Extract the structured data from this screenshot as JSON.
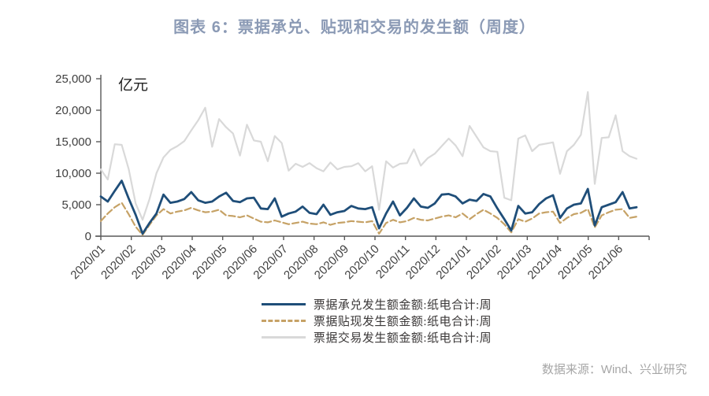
{
  "title": "图表 6：票据承兑、贴现和交易的发生额（周度）",
  "unit_label": "亿元",
  "source": "数据来源：Wind、兴业研究",
  "colors": {
    "title": "#8B9AB5",
    "axis": "#595959",
    "tick_text": "#404040",
    "source_text": "#A6A6A6",
    "series_accept": "#1F4E79",
    "series_discount": "#C6A266",
    "series_trade": "#D9D9D9"
  },
  "chart_data": {
    "type": "line",
    "title": "图表 6：票据承兑、贴现和交易的发生额（周度）",
    "ylabel": "亿元",
    "ylim": [
      0,
      25000
    ],
    "y_ticks": [
      "25,000",
      "20,000",
      "15,000",
      "10,000",
      "5,000",
      "0"
    ],
    "x_labels": [
      "2020/01",
      "2020/02",
      "2020/03",
      "2020/04",
      "2020/05",
      "2020/06",
      "2020/07",
      "2020/08",
      "2020/09",
      "2020/10",
      "2020/11",
      "2020/12",
      "2021/01",
      "2021/02",
      "2021/03",
      "2021/04",
      "2021/05",
      "2021/06"
    ],
    "frequency": "weekly",
    "grid": false,
    "legend_position": "bottom",
    "series": [
      {
        "name": "票据承兑发生额金额:纸电合计:周",
        "color": "#1F4E79",
        "dash": "solid",
        "values": [
          6300,
          5500,
          7200,
          8800,
          6000,
          3400,
          400,
          2100,
          3600,
          6600,
          5300,
          5500,
          5900,
          7000,
          5700,
          5300,
          5500,
          6300,
          6900,
          5600,
          5400,
          6000,
          6100,
          4400,
          4300,
          6000,
          3100,
          3600,
          3900,
          4700,
          3700,
          3500,
          5000,
          3400,
          3800,
          4000,
          4800,
          4400,
          4300,
          4600,
          1250,
          3600,
          5500,
          3300,
          4500,
          6000,
          4700,
          4500,
          5200,
          6600,
          6700,
          6300,
          5200,
          5800,
          5600,
          6700,
          6300,
          4400,
          2700,
          900,
          4800,
          3600,
          3800,
          5100,
          6000,
          6500,
          2900,
          4400,
          5000,
          5200,
          7500,
          1700,
          4600,
          5000,
          5400,
          7000,
          4400,
          4600
        ]
      },
      {
        "name": "票据贴现发生额金额:纸电合计:周",
        "color": "#C6A266",
        "dash": "dashed",
        "values": [
          2400,
          3600,
          4600,
          5300,
          3500,
          1500,
          200,
          1800,
          3300,
          4300,
          3600,
          3900,
          4100,
          4500,
          4100,
          3800,
          3900,
          4200,
          3300,
          3200,
          3000,
          3300,
          2800,
          2300,
          2200,
          2500,
          2200,
          1900,
          2100,
          2300,
          2000,
          1900,
          2200,
          1800,
          2100,
          2200,
          2400,
          2300,
          2200,
          2400,
          400,
          2100,
          2600,
          2200,
          2400,
          2900,
          2600,
          2500,
          2800,
          3100,
          3300,
          3000,
          3600,
          2700,
          3500,
          4200,
          3600,
          2900,
          1900,
          600,
          2700,
          2300,
          2800,
          3600,
          3800,
          3900,
          2100,
          2900,
          3500,
          3700,
          4300,
          1400,
          3300,
          3800,
          4200,
          4300,
          2900,
          3100
        ]
      },
      {
        "name": "票据交易发生额金额:纸电合计:周",
        "color": "#D9D9D9",
        "dash": "solid",
        "values": [
          10600,
          9000,
          14600,
          14500,
          10700,
          5200,
          2600,
          5900,
          10000,
          12500,
          13700,
          14300,
          15100,
          16800,
          18400,
          20400,
          14200,
          18600,
          17300,
          16300,
          12800,
          17700,
          15200,
          15000,
          11900,
          15900,
          14800,
          10400,
          11500,
          11000,
          11600,
          10800,
          10300,
          11700,
          10600,
          11000,
          11100,
          11600,
          10300,
          11100,
          4200,
          11900,
          10900,
          11500,
          11600,
          13800,
          11200,
          12400,
          13100,
          14300,
          15500,
          14400,
          12700,
          17500,
          15800,
          14100,
          13500,
          13400,
          6100,
          5700,
          15500,
          16000,
          13500,
          14500,
          14700,
          14900,
          9900,
          13500,
          14500,
          16100,
          22900,
          8300,
          15600,
          15700,
          19200,
          13500,
          12700,
          12300
        ]
      }
    ]
  }
}
